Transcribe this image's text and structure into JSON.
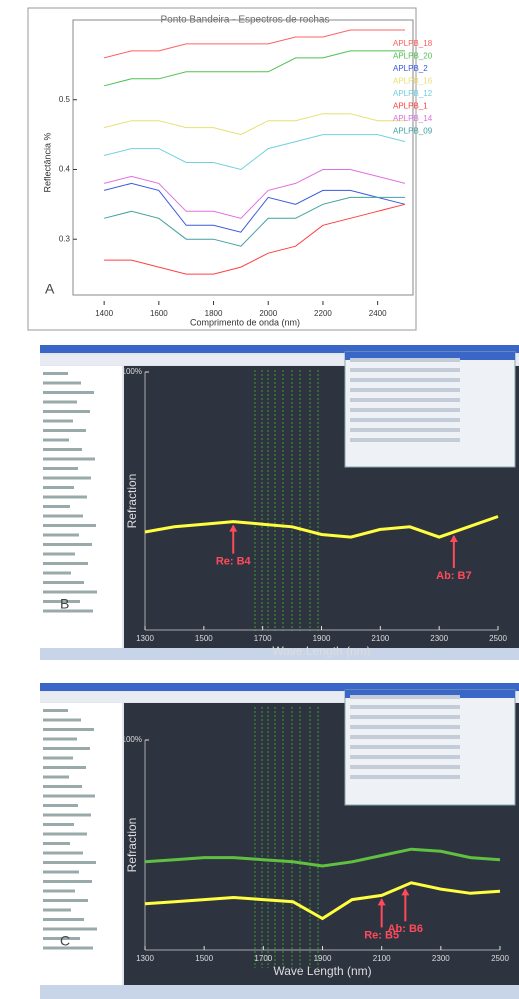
{
  "chart_data": [
    {
      "type": "line",
      "panel_label": "A",
      "title": "Ponto Bandeira - Espectros de rochas",
      "x_label": "Comprimento de onda (nm)",
      "y_label": "Reflectância %",
      "x": [
        1400,
        1500,
        1600,
        1700,
        1800,
        1900,
        2000,
        2100,
        2200,
        2300,
        2400,
        2500
      ],
      "xlim": [
        1330,
        2500
      ],
      "xticks": [
        1400,
        1600,
        1800,
        2000,
        2200,
        2400
      ],
      "ylim": [
        0.22,
        0.6
      ],
      "yticks": [
        0.3,
        0.4,
        0.5
      ],
      "series": [
        {
          "name": "APLPB_18",
          "color": "#ff6060",
          "values": [
            0.56,
            0.57,
            0.57,
            0.58,
            0.58,
            0.58,
            0.58,
            0.59,
            0.59,
            0.6,
            0.6,
            0.6
          ]
        },
        {
          "name": "APLPB_20",
          "color": "#50c050",
          "values": [
            0.52,
            0.53,
            0.53,
            0.54,
            0.54,
            0.54,
            0.54,
            0.56,
            0.56,
            0.57,
            0.57,
            0.57
          ]
        },
        {
          "name": "APLPB_2",
          "color": "#3a5adf",
          "values": [
            0.37,
            0.38,
            0.37,
            0.32,
            0.32,
            0.31,
            0.36,
            0.35,
            0.37,
            0.37,
            0.36,
            0.35
          ]
        },
        {
          "name": "APLPB_16",
          "color": "#e8e070",
          "values": [
            0.46,
            0.47,
            0.47,
            0.46,
            0.46,
            0.45,
            0.47,
            0.47,
            0.48,
            0.48,
            0.47,
            0.47
          ]
        },
        {
          "name": "APLPB_12",
          "color": "#70d0e0",
          "values": [
            0.42,
            0.43,
            0.43,
            0.41,
            0.41,
            0.4,
            0.43,
            0.44,
            0.45,
            0.45,
            0.45,
            0.44
          ]
        },
        {
          "name": "APLPB_1",
          "color": "#ff4040",
          "values": [
            0.27,
            0.27,
            0.26,
            0.25,
            0.25,
            0.26,
            0.28,
            0.29,
            0.32,
            0.33,
            0.34,
            0.35
          ]
        },
        {
          "name": "APLPB_14",
          "color": "#e070e0",
          "values": [
            0.38,
            0.39,
            0.38,
            0.34,
            0.34,
            0.33,
            0.37,
            0.38,
            0.4,
            0.4,
            0.39,
            0.38
          ]
        },
        {
          "name": "APLPB_09",
          "color": "#40a0a0",
          "values": [
            0.33,
            0.34,
            0.33,
            0.3,
            0.3,
            0.29,
            0.33,
            0.33,
            0.35,
            0.36,
            0.36,
            0.36
          ]
        }
      ]
    },
    {
      "type": "line",
      "panel_label": "B",
      "x_label": "Wave Length (nm)",
      "y_label": "Refraction",
      "x": [
        1300,
        1400,
        1500,
        1600,
        1700,
        1800,
        1900,
        2000,
        2100,
        2200,
        2300,
        2400,
        2500
      ],
      "xlim": [
        1300,
        2500
      ],
      "xticks": [
        1300,
        1500,
        1700,
        1900,
        2100,
        2300,
        2500
      ],
      "ylim": [
        0,
        100
      ],
      "yticks": [
        {
          "value": 100,
          "label": "100%"
        }
      ],
      "series": [
        {
          "color": "#ffff40",
          "values": [
            38,
            40,
            41,
            42,
            41,
            40,
            37,
            36,
            39,
            40,
            36,
            40,
            44
          ]
        }
      ],
      "annotations": [
        {
          "text": "Re: B4",
          "x": 1600
        },
        {
          "text": "Ab: B7",
          "x": 2350
        }
      ]
    },
    {
      "type": "line",
      "panel_label": "C",
      "x_label": "Wave Length (nm)",
      "y_label": "Refraction",
      "x": [
        1300,
        1400,
        1500,
        1600,
        1700,
        1800,
        1900,
        2000,
        2100,
        2200,
        2300,
        2400,
        2500
      ],
      "xlim": [
        1300,
        2500
      ],
      "xticks": [
        1300,
        1500,
        1700,
        1900,
        2100,
        2300,
        2500
      ],
      "ylim": [
        0,
        100
      ],
      "yticks": [
        {
          "value": 100,
          "label": "100%"
        }
      ],
      "series": [
        {
          "color": "#60c040",
          "values": [
            42,
            43,
            44,
            44,
            43,
            42,
            40,
            42,
            45,
            48,
            47,
            44,
            43
          ]
        },
        {
          "color": "#ffff40",
          "values": [
            22,
            23,
            24,
            25,
            24,
            23,
            15,
            24,
            26,
            32,
            29,
            27,
            28
          ]
        }
      ],
      "annotations": [
        {
          "text": "Re: B5",
          "x": 2100
        },
        {
          "text": "Ab: B6",
          "x": 2180
        }
      ]
    }
  ]
}
